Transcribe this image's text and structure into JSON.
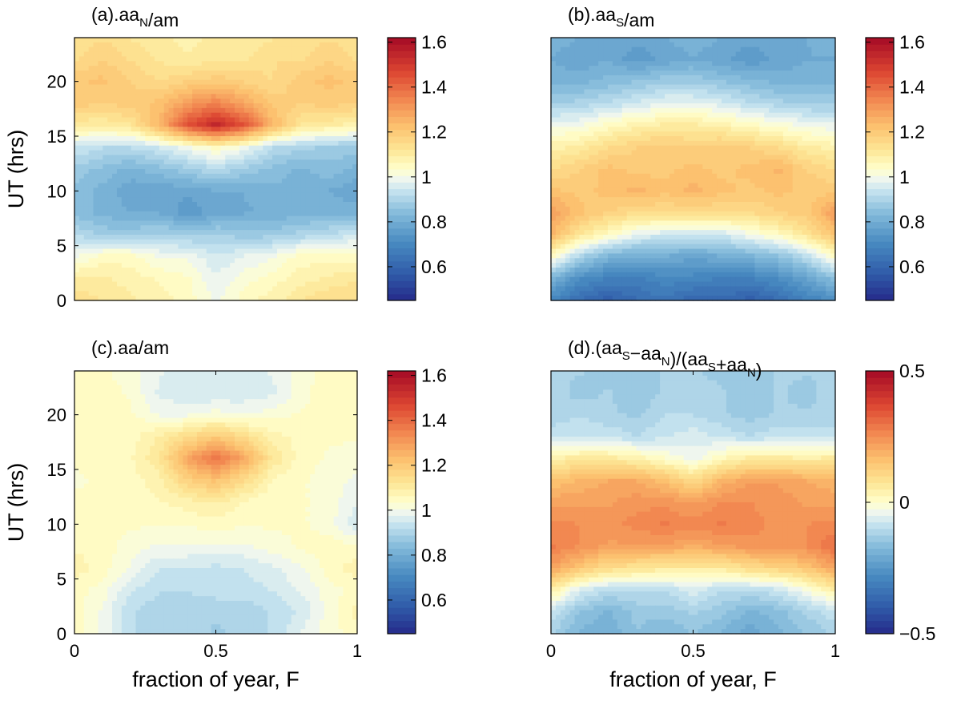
{
  "chart_data": [
    {
      "type": "heatmap",
      "id": "a",
      "title_parts": [
        {
          "t": "(a).aa"
        },
        {
          "t": "N",
          "sub": true
        },
        {
          "t": "/am"
        }
      ],
      "xlabel": "",
      "ylabel": "UT (hrs)",
      "xlim": [
        0,
        1
      ],
      "ylim": [
        0,
        24
      ],
      "xticks": [],
      "yticks": [
        "0",
        "5",
        "10",
        "15",
        "20"
      ],
      "ytick_values": [
        0,
        5,
        10,
        15,
        20
      ],
      "colorbar": {
        "range": [
          0.45,
          1.62
        ],
        "ticks": [
          0.6,
          0.8,
          1,
          1.2,
          1.4,
          1.6
        ],
        "tick_labels": [
          "0.6",
          "0.8",
          "1",
          "1.2",
          "1.4",
          "1.6"
        ]
      },
      "x": [
        0,
        0.1,
        0.2,
        0.3,
        0.4,
        0.5,
        0.6,
        0.7,
        0.8,
        0.9,
        1.0
      ],
      "y": [
        0,
        2,
        4,
        6,
        8,
        10,
        12,
        14,
        16,
        18,
        20,
        22,
        24
      ],
      "z": [
        [
          1.15,
          1.12,
          1.1,
          1.08,
          1.05,
          1.0,
          1.05,
          1.08,
          1.12,
          1.15,
          1.15
        ],
        [
          1.1,
          1.1,
          1.08,
          1.06,
          1.04,
          0.98,
          1.02,
          1.05,
          1.08,
          1.1,
          1.12
        ],
        [
          1.0,
          1.05,
          1.05,
          1.0,
          1.0,
          0.95,
          0.98,
          1.0,
          1.05,
          1.05,
          1.05
        ],
        [
          0.92,
          0.88,
          0.88,
          0.9,
          0.88,
          0.9,
          0.87,
          0.88,
          0.9,
          0.92,
          0.95
        ],
        [
          0.85,
          0.82,
          0.8,
          0.8,
          0.75,
          0.78,
          0.8,
          0.8,
          0.82,
          0.82,
          0.82
        ],
        [
          0.85,
          0.82,
          0.78,
          0.78,
          0.78,
          0.8,
          0.8,
          0.82,
          0.82,
          0.8,
          0.78
        ],
        [
          0.88,
          0.85,
          0.82,
          0.85,
          0.88,
          0.92,
          0.88,
          0.85,
          0.82,
          0.85,
          0.82
        ],
        [
          0.95,
          0.92,
          0.92,
          0.95,
          1.0,
          1.05,
          1.0,
          0.92,
          0.9,
          0.88,
          0.88
        ],
        [
          1.1,
          1.1,
          1.12,
          1.25,
          1.45,
          1.55,
          1.45,
          1.25,
          1.12,
          1.1,
          1.08
        ],
        [
          1.2,
          1.18,
          1.2,
          1.22,
          1.3,
          1.35,
          1.28,
          1.2,
          1.18,
          1.2,
          1.18
        ],
        [
          1.2,
          1.22,
          1.18,
          1.15,
          1.18,
          1.2,
          1.18,
          1.15,
          1.2,
          1.22,
          1.2
        ],
        [
          1.15,
          1.18,
          1.15,
          1.12,
          1.1,
          1.12,
          1.12,
          1.15,
          1.15,
          1.18,
          1.15
        ],
        [
          1.12,
          1.15,
          1.12,
          1.1,
          1.08,
          1.1,
          1.1,
          1.12,
          1.12,
          1.15,
          1.12
        ]
      ]
    },
    {
      "type": "heatmap",
      "id": "b",
      "title_parts": [
        {
          "t": "(b).aa"
        },
        {
          "t": "S",
          "sub": true
        },
        {
          "t": "/am"
        }
      ],
      "xlabel": "",
      "ylabel": "",
      "xlim": [
        0,
        1
      ],
      "ylim": [
        0,
        24
      ],
      "xticks": [],
      "yticks": [],
      "colorbar": {
        "range": [
          0.45,
          1.62
        ],
        "ticks": [
          0.6,
          0.8,
          1,
          1.2,
          1.4,
          1.6
        ],
        "tick_labels": [
          "0.6",
          "0.8",
          "1",
          "1.2",
          "1.4",
          "1.6"
        ]
      },
      "x": [
        0,
        0.1,
        0.2,
        0.3,
        0.4,
        0.5,
        0.6,
        0.7,
        0.8,
        0.9,
        1.0
      ],
      "y": [
        0,
        2,
        4,
        6,
        8,
        10,
        12,
        14,
        16,
        18,
        20,
        22,
        24
      ],
      "z": [
        [
          0.7,
          0.62,
          0.58,
          0.62,
          0.65,
          0.6,
          0.62,
          0.58,
          0.62,
          0.68,
          0.72
        ],
        [
          0.82,
          0.72,
          0.68,
          0.68,
          0.7,
          0.7,
          0.68,
          0.68,
          0.72,
          0.78,
          0.85
        ],
        [
          1.05,
          0.9,
          0.82,
          0.8,
          0.8,
          0.78,
          0.8,
          0.82,
          0.85,
          0.92,
          1.05
        ],
        [
          1.25,
          1.12,
          1.05,
          0.98,
          0.95,
          0.95,
          0.95,
          1.0,
          1.05,
          1.12,
          1.22
        ],
        [
          1.3,
          1.22,
          1.18,
          1.15,
          1.15,
          1.15,
          1.15,
          1.15,
          1.18,
          1.2,
          1.3
        ],
        [
          1.22,
          1.2,
          1.22,
          1.25,
          1.22,
          1.25,
          1.22,
          1.2,
          1.22,
          1.2,
          1.2
        ],
        [
          1.15,
          1.18,
          1.22,
          1.2,
          1.2,
          1.22,
          1.2,
          1.22,
          1.25,
          1.18,
          1.15
        ],
        [
          1.08,
          1.1,
          1.15,
          1.18,
          1.2,
          1.18,
          1.2,
          1.18,
          1.15,
          1.1,
          1.08
        ],
        [
          1.0,
          1.0,
          1.05,
          1.08,
          1.1,
          1.1,
          1.08,
          1.05,
          1.02,
          1.0,
          0.98
        ],
        [
          0.88,
          0.9,
          0.92,
          0.95,
          0.98,
          0.98,
          0.96,
          0.92,
          0.9,
          0.88,
          0.88
        ],
        [
          0.82,
          0.82,
          0.84,
          0.86,
          0.88,
          0.88,
          0.86,
          0.84,
          0.82,
          0.82,
          0.82
        ],
        [
          0.8,
          0.78,
          0.8,
          0.75,
          0.78,
          0.8,
          0.78,
          0.75,
          0.78,
          0.8,
          0.8
        ],
        [
          0.82,
          0.8,
          0.8,
          0.78,
          0.8,
          0.82,
          0.8,
          0.78,
          0.8,
          0.8,
          0.82
        ]
      ]
    },
    {
      "type": "heatmap",
      "id": "c",
      "title_parts": [
        {
          "t": "(c).aa/am"
        }
      ],
      "xlabel": "fraction of year, F",
      "ylabel": "UT (hrs)",
      "xlim": [
        0,
        1
      ],
      "ylim": [
        0,
        24
      ],
      "xticks": [
        "0",
        "0.5",
        "1"
      ],
      "xtick_values": [
        0,
        0.5,
        1
      ],
      "yticks": [
        "0",
        "5",
        "10",
        "15",
        "20"
      ],
      "ytick_values": [
        0,
        5,
        10,
        15,
        20
      ],
      "colorbar": {
        "range": [
          0.45,
          1.62
        ],
        "ticks": [
          0.6,
          0.8,
          1,
          1.2,
          1.4,
          1.6
        ],
        "tick_labels": [
          "0.6",
          "0.8",
          "1",
          "1.2",
          "1.4",
          "1.6"
        ]
      },
      "x": [
        0,
        0.1,
        0.2,
        0.3,
        0.4,
        0.5,
        0.6,
        0.7,
        0.8,
        0.9,
        1.0
      ],
      "y": [
        0,
        2,
        4,
        6,
        8,
        10,
        12,
        14,
        16,
        18,
        20,
        22,
        24
      ],
      "z": [
        [
          1.05,
          1.0,
          0.92,
          0.9,
          0.92,
          0.88,
          0.9,
          0.92,
          0.98,
          1.02,
          1.05
        ],
        [
          1.05,
          1.0,
          0.92,
          0.9,
          0.9,
          0.9,
          0.9,
          0.92,
          0.95,
          1.02,
          1.08
        ],
        [
          1.05,
          1.02,
          0.95,
          0.92,
          0.92,
          0.93,
          0.93,
          0.95,
          0.98,
          1.02,
          1.05
        ],
        [
          1.08,
          1.05,
          1.0,
          0.95,
          0.95,
          0.94,
          0.95,
          0.97,
          1.0,
          1.05,
          1.08
        ],
        [
          1.06,
          1.05,
          1.02,
          1.0,
          1.0,
          1.0,
          1.0,
          1.02,
          1.04,
          1.05,
          1.04
        ],
        [
          1.05,
          1.05,
          1.04,
          1.04,
          1.04,
          1.05,
          1.04,
          1.04,
          1.04,
          1.02,
          0.95
        ],
        [
          1.04,
          1.04,
          1.05,
          1.06,
          1.08,
          1.1,
          1.06,
          1.04,
          1.04,
          1.02,
          0.98
        ],
        [
          1.03,
          1.04,
          1.05,
          1.08,
          1.18,
          1.22,
          1.15,
          1.06,
          1.04,
          1.02,
          1.0
        ],
        [
          1.04,
          1.04,
          1.06,
          1.12,
          1.28,
          1.38,
          1.28,
          1.12,
          1.05,
          1.03,
          1.02
        ],
        [
          1.05,
          1.05,
          1.05,
          1.1,
          1.15,
          1.2,
          1.15,
          1.08,
          1.05,
          1.04,
          1.04
        ],
        [
          1.05,
          1.05,
          1.04,
          1.0,
          1.0,
          1.02,
          1.0,
          1.02,
          1.04,
          1.05,
          1.05
        ],
        [
          1.05,
          1.05,
          1.03,
          0.97,
          0.95,
          0.95,
          0.96,
          0.97,
          1.02,
          1.06,
          1.06
        ],
        [
          1.04,
          1.04,
          1.02,
          0.98,
          0.95,
          0.95,
          0.97,
          0.98,
          1.02,
          1.05,
          1.05
        ]
      ]
    },
    {
      "type": "heatmap",
      "id": "d",
      "title_parts": [
        {
          "t": "(d).(aa"
        },
        {
          "t": "S",
          "sub": true
        },
        {
          "t": "−aa"
        },
        {
          "t": "N",
          "sub": true
        },
        {
          "t": ")/(aa"
        },
        {
          "t": "S",
          "sub": true
        },
        {
          "t": "+aa"
        },
        {
          "t": "N",
          "sub": true
        },
        {
          "t": ")"
        }
      ],
      "xlabel": "fraction of year, F",
      "ylabel": "",
      "xlim": [
        0,
        1
      ],
      "ylim": [
        0,
        24
      ],
      "xticks": [
        "0",
        "0.5",
        "1"
      ],
      "xtick_values": [
        0,
        0.5,
        1
      ],
      "yticks": [],
      "colorbar": {
        "range": [
          -0.5,
          0.5
        ],
        "ticks": [
          -0.5,
          0,
          0.5
        ],
        "tick_labels": [
          "−0.5",
          "0",
          "0.5"
        ]
      },
      "x": [
        0,
        0.1,
        0.2,
        0.3,
        0.4,
        0.5,
        0.6,
        0.7,
        0.8,
        0.9,
        1.0
      ],
      "y": [
        0,
        2,
        4,
        6,
        8,
        10,
        12,
        14,
        16,
        18,
        20,
        22,
        24
      ],
      "z": [
        [
          -0.12,
          -0.18,
          -0.2,
          -0.15,
          -0.18,
          -0.15,
          -0.18,
          -0.22,
          -0.18,
          -0.15,
          -0.12
        ],
        [
          -0.08,
          -0.15,
          -0.18,
          -0.14,
          -0.14,
          -0.12,
          -0.14,
          -0.18,
          -0.16,
          -0.12,
          -0.08
        ],
        [
          0.05,
          -0.06,
          -0.1,
          -0.1,
          -0.1,
          -0.06,
          -0.1,
          -0.1,
          -0.08,
          -0.02,
          0.05
        ],
        [
          0.22,
          0.15,
          0.1,
          0.08,
          0.06,
          0.06,
          0.06,
          0.1,
          0.12,
          0.15,
          0.22
        ],
        [
          0.28,
          0.25,
          0.22,
          0.22,
          0.22,
          0.2,
          0.22,
          0.24,
          0.25,
          0.25,
          0.3
        ],
        [
          0.26,
          0.25,
          0.24,
          0.26,
          0.28,
          0.26,
          0.28,
          0.26,
          0.24,
          0.25,
          0.26
        ],
        [
          0.22,
          0.22,
          0.22,
          0.24,
          0.24,
          0.22,
          0.25,
          0.25,
          0.24,
          0.22,
          0.22
        ],
        [
          0.15,
          0.18,
          0.2,
          0.2,
          0.16,
          0.1,
          0.18,
          0.22,
          0.22,
          0.2,
          0.18
        ],
        [
          0.05,
          0.06,
          0.06,
          0.04,
          0.0,
          -0.04,
          0.02,
          0.06,
          0.06,
          0.05,
          0.06
        ],
        [
          -0.08,
          -0.08,
          -0.08,
          -0.1,
          -0.08,
          -0.06,
          -0.08,
          -0.1,
          -0.08,
          -0.08,
          -0.08
        ],
        [
          -0.12,
          -0.1,
          -0.12,
          -0.13,
          -0.1,
          -0.1,
          -0.12,
          -0.14,
          -0.12,
          -0.12,
          -0.12
        ],
        [
          -0.1,
          -0.14,
          -0.12,
          -0.15,
          -0.12,
          -0.1,
          -0.12,
          -0.15,
          -0.12,
          -0.14,
          -0.1
        ],
        [
          -0.12,
          -0.12,
          -0.14,
          -0.14,
          -0.12,
          -0.12,
          -0.14,
          -0.14,
          -0.12,
          -0.12,
          -0.12
        ]
      ]
    }
  ]
}
